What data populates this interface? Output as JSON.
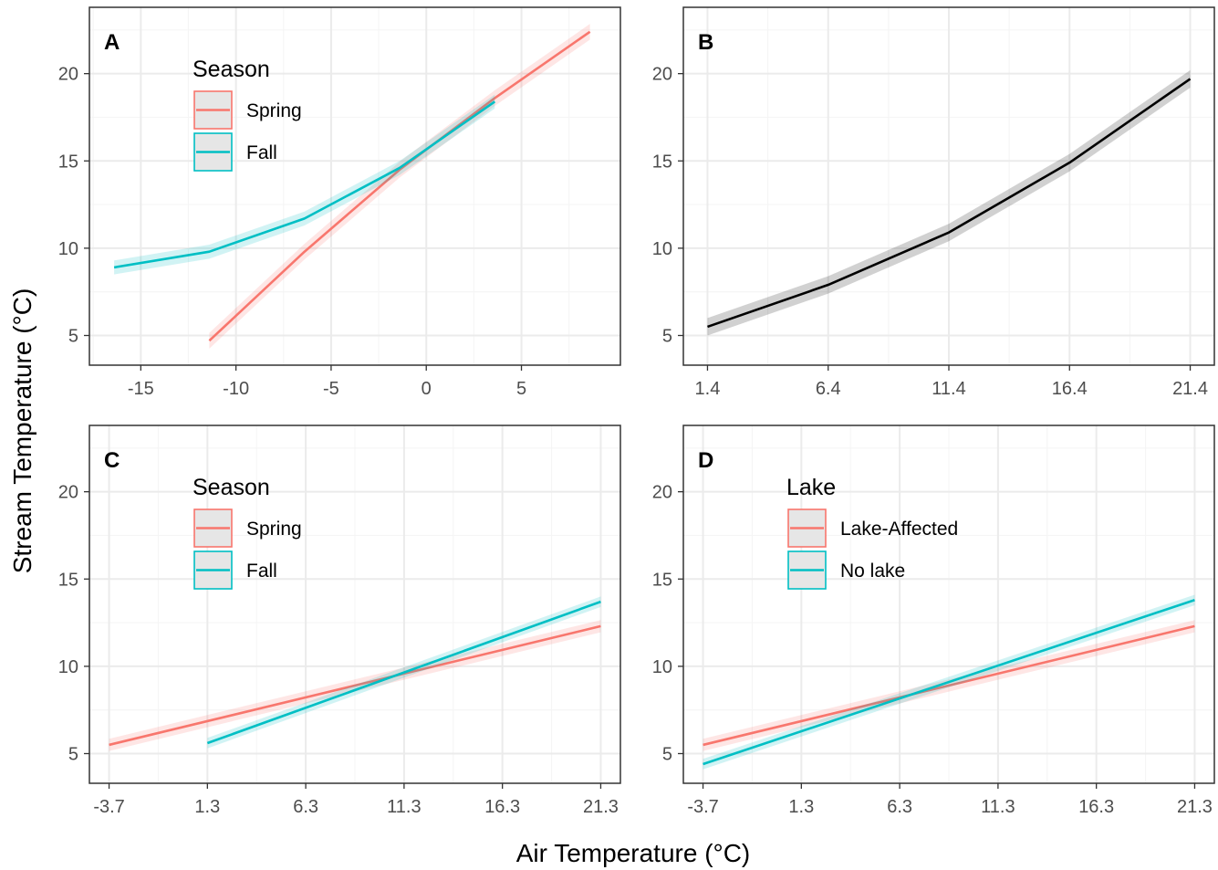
{
  "figure": {
    "xlabel": "Air Temperature (°C)",
    "ylabel": "Stream Temperature (°C)"
  },
  "colors": {
    "spring": "#F8766D",
    "fall": "#00BFC4",
    "single": "#000000",
    "grid_major": "#ebebeb",
    "grid_minor": "#f5f5f5",
    "border": "#333333",
    "legend_key_bg": "#e6e6e6"
  },
  "chart_data": [
    {
      "panel": "A",
      "type": "line",
      "xlim": [
        -17.7,
        10.2
      ],
      "ylim": [
        3.3,
        23.8
      ],
      "xticks": [
        -15,
        -10,
        -5,
        0,
        5
      ],
      "xtick_labels": [
        "-15",
        "-10",
        "-5",
        "0",
        "5"
      ],
      "yticks": [
        5,
        10,
        15,
        20
      ],
      "ytick_labels": [
        "5",
        "10",
        "15",
        "20"
      ],
      "legend": {
        "title": "Season",
        "position": "top-left"
      },
      "series": [
        {
          "name": "Spring",
          "color_key": "spring",
          "band": 0.45,
          "x": [
            -11.4,
            -6.4,
            -1.4,
            3.6,
            8.6
          ],
          "y": [
            4.7,
            9.8,
            14.5,
            18.6,
            22.4
          ]
        },
        {
          "name": "Fall",
          "color_key": "fall",
          "band": 0.4,
          "x": [
            -16.4,
            -11.4,
            -6.4,
            -1.4,
            3.6
          ],
          "y": [
            8.9,
            9.8,
            11.7,
            14.6,
            18.4
          ]
        }
      ]
    },
    {
      "panel": "B",
      "type": "line",
      "xlim": [
        0.4,
        22.4
      ],
      "ylim": [
        3.3,
        23.8
      ],
      "xticks": [
        1.4,
        6.4,
        11.4,
        16.4,
        21.4
      ],
      "xtick_labels": [
        "1.4",
        "6.4",
        "11.4",
        "16.4",
        "21.4"
      ],
      "yticks": [
        5,
        10,
        15,
        20
      ],
      "ytick_labels": [
        "5",
        "10",
        "15",
        "20"
      ],
      "series": [
        {
          "color_key": "single",
          "band": 0.5,
          "x": [
            1.4,
            6.4,
            11.4,
            16.4,
            21.4
          ],
          "y": [
            5.5,
            7.9,
            10.9,
            14.9,
            19.7
          ]
        }
      ]
    },
    {
      "panel": "C",
      "type": "line",
      "xlim": [
        -4.7,
        22.3
      ],
      "ylim": [
        3.3,
        23.8
      ],
      "xticks": [
        -3.7,
        1.3,
        6.3,
        11.3,
        16.3,
        21.3
      ],
      "xtick_labels": [
        "-3.7",
        "1.3",
        "6.3",
        "11.3",
        "16.3",
        "21.3"
      ],
      "yticks": [
        5,
        10,
        15,
        20
      ],
      "ytick_labels": [
        "5",
        "10",
        "15",
        "20"
      ],
      "legend": {
        "title": "Season",
        "position": "top-left"
      },
      "series": [
        {
          "name": "Spring",
          "color_key": "spring",
          "band": 0.35,
          "x": [
            -3.7,
            21.3
          ],
          "y": [
            5.5,
            12.3
          ]
        },
        {
          "name": "Fall",
          "color_key": "fall",
          "band": 0.3,
          "x": [
            1.3,
            21.3
          ],
          "y": [
            5.6,
            13.7
          ]
        }
      ]
    },
    {
      "panel": "D",
      "type": "line",
      "xlim": [
        -4.7,
        22.3
      ],
      "ylim": [
        3.3,
        23.8
      ],
      "xticks": [
        -3.7,
        1.3,
        6.3,
        11.3,
        16.3,
        21.3
      ],
      "xtick_labels": [
        "-3.7",
        "1.3",
        "6.3",
        "11.3",
        "16.3",
        "21.3"
      ],
      "yticks": [
        5,
        10,
        15,
        20
      ],
      "ytick_labels": [
        "5",
        "10",
        "15",
        "20"
      ],
      "legend": {
        "title": "Lake",
        "position": "top-left"
      },
      "series": [
        {
          "name": "Lake-Affected",
          "color_key": "spring",
          "band": 0.35,
          "x": [
            -3.7,
            21.3
          ],
          "y": [
            5.5,
            12.3
          ]
        },
        {
          "name": "No lake",
          "color_key": "fall",
          "band": 0.3,
          "x": [
            -3.7,
            21.3
          ],
          "y": [
            4.4,
            13.8
          ]
        }
      ]
    }
  ]
}
